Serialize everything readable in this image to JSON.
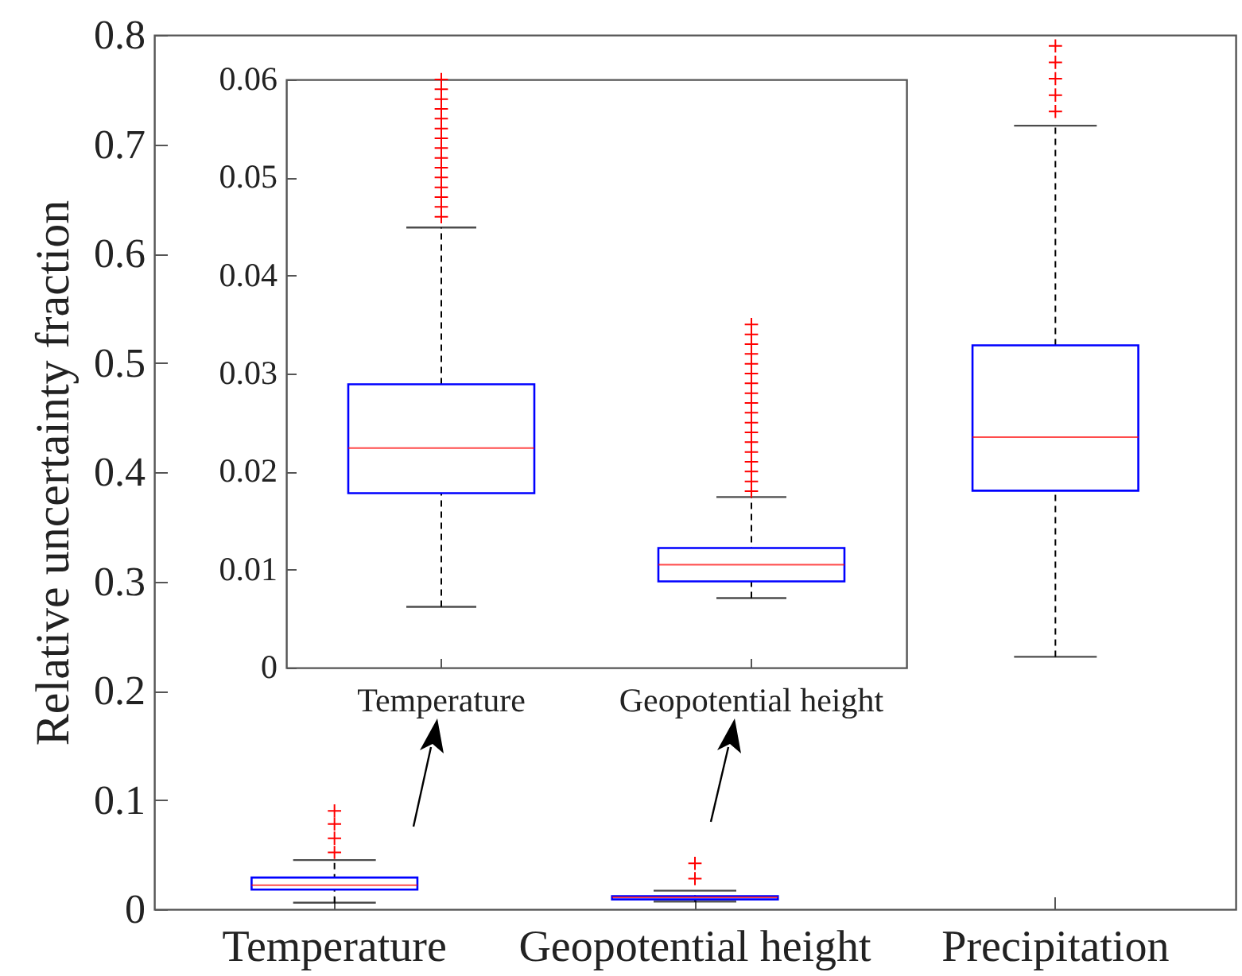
{
  "chart_data": [
    {
      "type": "box",
      "ylabel": "Relative uncertainty fraction",
      "categories": [
        "Temperature",
        "Geopotential height",
        "Precipitation"
      ],
      "boxes": [
        {
          "low": 0.006,
          "q1": 0.018,
          "median": 0.022,
          "q3": 0.029,
          "high": 0.045,
          "outliers": [
            0.052,
            0.065,
            0.078,
            0.09
          ]
        },
        {
          "low": 0.007,
          "q1": 0.009,
          "median": 0.011,
          "q3": 0.012,
          "high": 0.017,
          "outliers": [
            0.028,
            0.042
          ]
        },
        {
          "low": 0.231,
          "q1": 0.383,
          "median": 0.432,
          "q3": 0.516,
          "high": 0.717,
          "outliers": [
            0.73,
            0.745,
            0.76,
            0.775,
            0.79
          ]
        }
      ],
      "ylim": [
        0,
        0.8
      ],
      "yticks": [
        0,
        0.1,
        0.2,
        0.3,
        0.4,
        0.5,
        0.6,
        0.7,
        0.8
      ]
    },
    {
      "type": "box",
      "categories": [
        "Temperature",
        "Geopotential height"
      ],
      "boxes": [
        {
          "low": 0.0062,
          "q1": 0.0178,
          "median": 0.0224,
          "q3": 0.0289,
          "high": 0.0449,
          "outliers": [
            0.046,
            0.047,
            0.048,
            0.049,
            0.05,
            0.051,
            0.052,
            0.053,
            0.054,
            0.055,
            0.056,
            0.057,
            0.058,
            0.059,
            0.06
          ]
        },
        {
          "low": 0.0071,
          "q1": 0.0088,
          "median": 0.0105,
          "q3": 0.0122,
          "high": 0.0174,
          "outliers": [
            0.018,
            0.019,
            0.02,
            0.021,
            0.022,
            0.023,
            0.024,
            0.025,
            0.026,
            0.027,
            0.028,
            0.029,
            0.03,
            0.031,
            0.032,
            0.033,
            0.034,
            0.035
          ]
        }
      ],
      "ylim": [
        0,
        0.06
      ],
      "yticks": [
        0,
        0.01,
        0.02,
        0.03,
        0.04,
        0.05,
        0.06
      ]
    }
  ]
}
